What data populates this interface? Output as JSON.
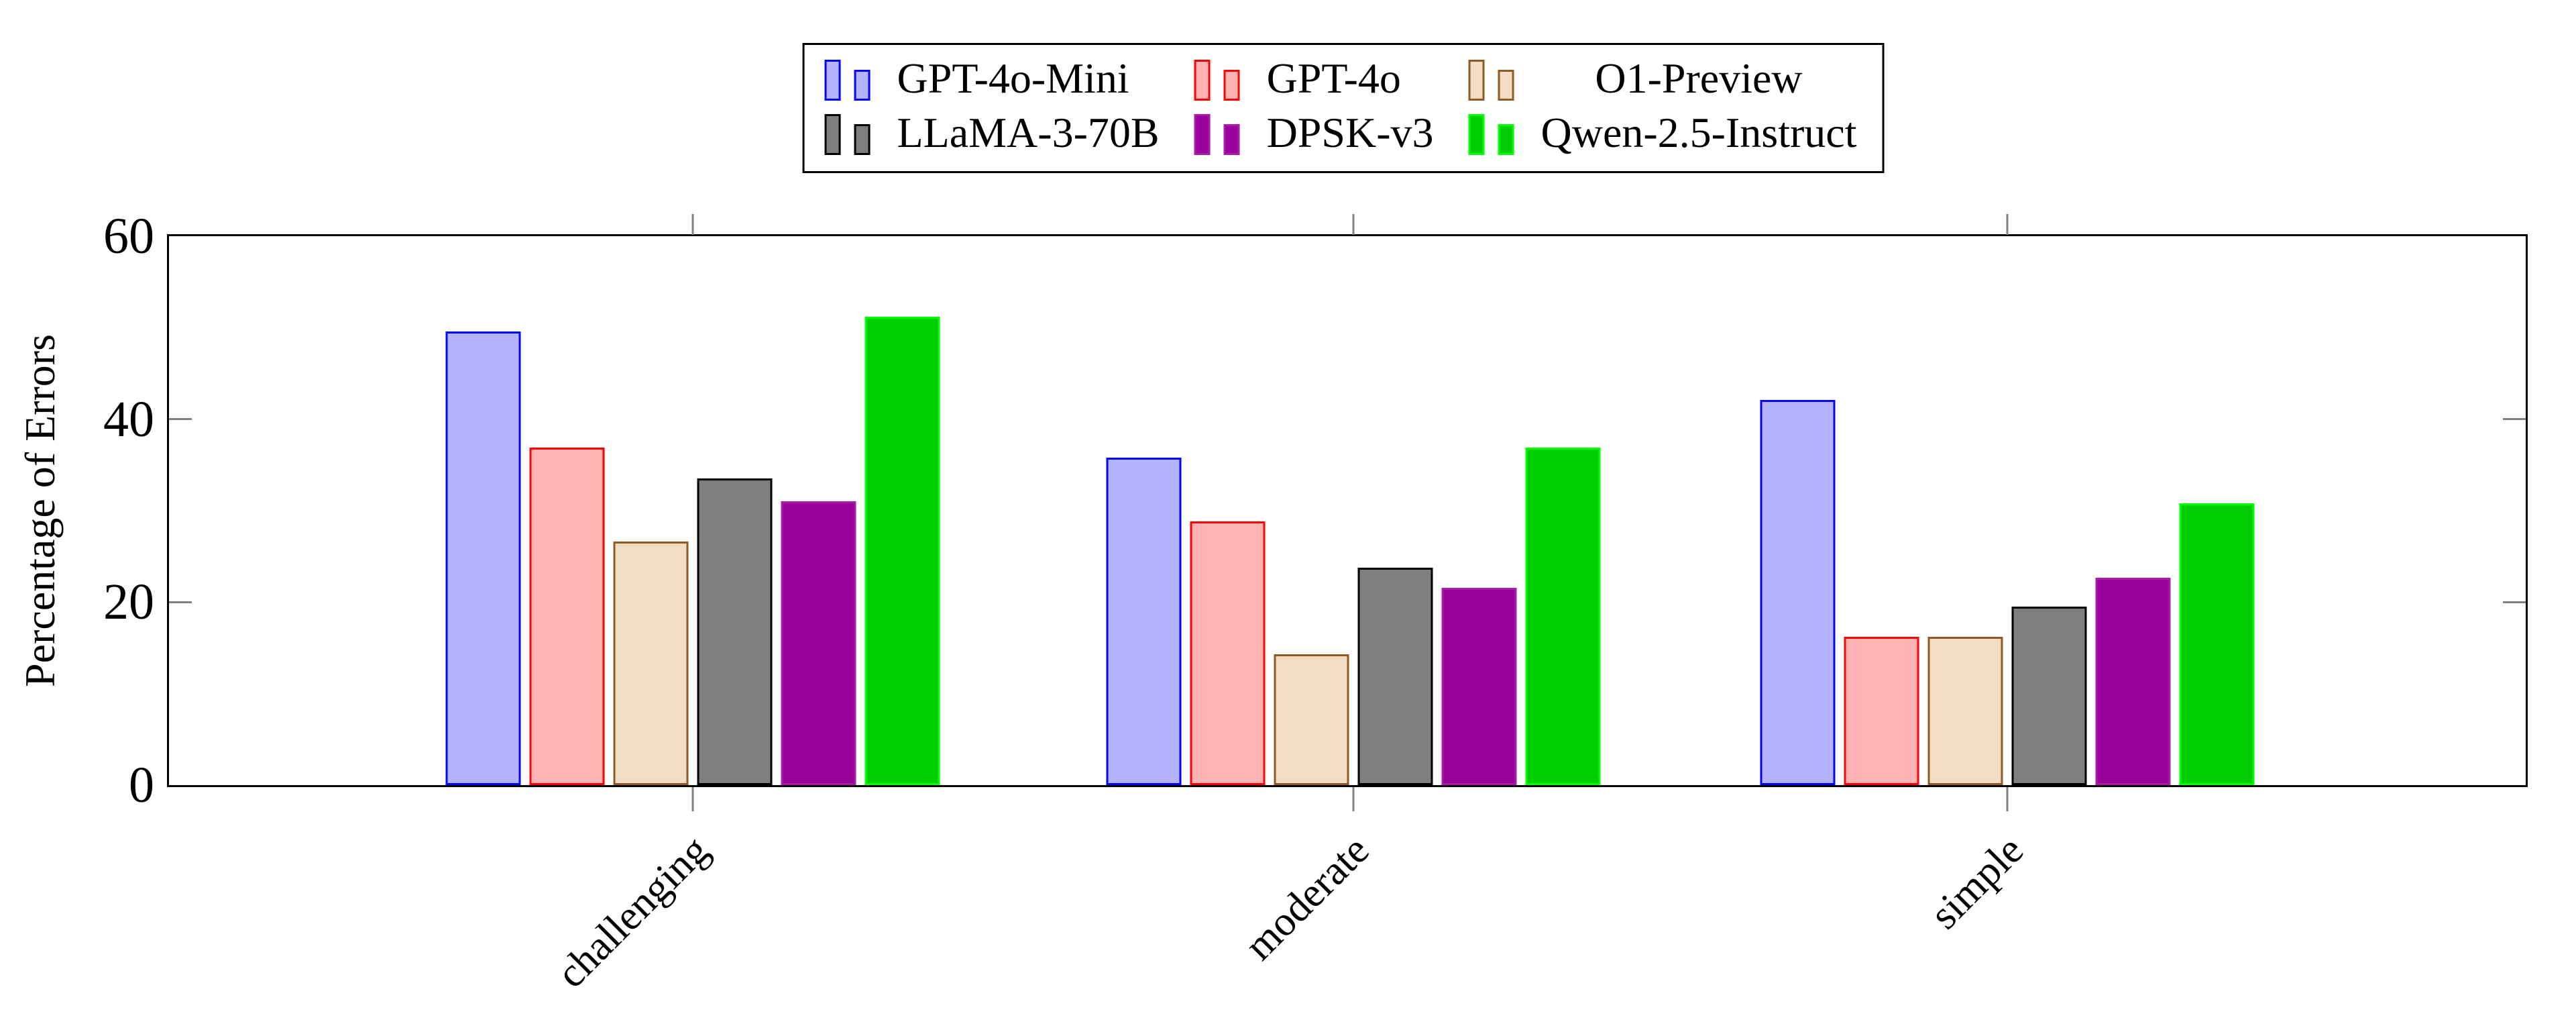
{
  "chart_data": {
    "type": "bar",
    "title": "",
    "ylabel": "Percentage of Errors",
    "xlabel": "",
    "categories": [
      "challenging",
      "moderate",
      "simple"
    ],
    "series": [
      {
        "name": "GPT-4o-Mini",
        "fill": "#B3B3FF",
        "border": "#0202FF",
        "values": [
          49.6,
          35.8,
          42.1
        ]
      },
      {
        "name": "GPT-4o",
        "fill": "#FFB3B3",
        "border": "#FF0101",
        "values": [
          36.9,
          28.8,
          16.2
        ]
      },
      {
        "name": "O1-Preview",
        "fill": "#F2DCC3",
        "border": "#8F5B25",
        "values": [
          26.6,
          14.3,
          16.2
        ]
      },
      {
        "name": "LLaMA-3-70B",
        "fill": "#7F7F7F",
        "border": "#000000",
        "values": [
          33.5,
          23.8,
          19.5
        ]
      },
      {
        "name": "DPSK-v3",
        "fill": "#990099",
        "border": "#A81CA8",
        "values": [
          31.0,
          21.6,
          22.7
        ]
      },
      {
        "name": "Qwen-2.5-Instruct",
        "fill": "#00CE00",
        "border": "#00FF00",
        "values": [
          51.2,
          36.9,
          30.8
        ]
      }
    ],
    "yticks": [
      0,
      20,
      40,
      60
    ],
    "ylim": [
      0,
      60
    ],
    "grid": false,
    "legend_position": "top-center",
    "axis_color": "#000000",
    "tick_color": "#808080"
  }
}
